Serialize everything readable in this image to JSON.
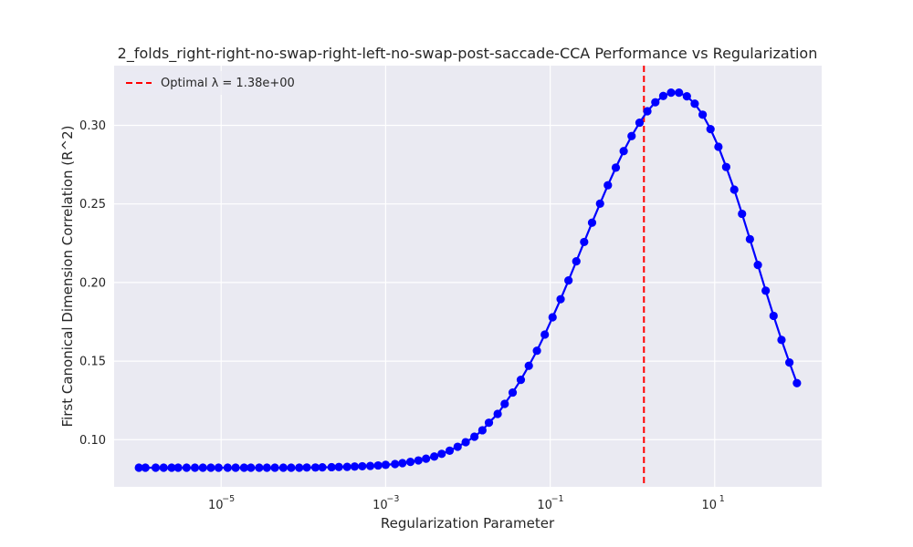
{
  "chart_data": {
    "type": "line",
    "title": "2_folds_right-right-no-swap-right-left-no-swap-post-saccade-CCA Performance vs Regularization",
    "xlabel": "Regularization Parameter",
    "ylabel": "First Canonical Dimension Correlation (R^2)",
    "x_scale": "log",
    "xlim": [
      5e-07,
      200
    ],
    "ylim": [
      0.07,
      0.338
    ],
    "x_ticks": [
      {
        "value": 1e-05,
        "base": "10",
        "exp": "−5"
      },
      {
        "value": 0.001,
        "base": "10",
        "exp": "−3"
      },
      {
        "value": 0.1,
        "base": "10",
        "exp": "−1"
      },
      {
        "value": 10,
        "base": "10",
        "exp": "1"
      }
    ],
    "y_ticks": [
      {
        "value": 0.1,
        "label": "0.10"
      },
      {
        "value": 0.15,
        "label": "0.15"
      },
      {
        "value": 0.2,
        "label": "0.20"
      },
      {
        "value": 0.25,
        "label": "0.25"
      },
      {
        "value": 0.3,
        "label": "0.30"
      }
    ],
    "grid": true,
    "legend_position": "top-left",
    "optimal_line": {
      "x": 1.38,
      "label": "Optimal λ = 1.38e+00",
      "color": "#ff0000"
    },
    "series": [
      {
        "color": "#0000ff",
        "x": [
          1e-06,
          1.2e-06,
          1.6e-06,
          2e-06,
          2.5e-06,
          3e-06,
          3.8e-06,
          4.8e-06,
          6e-06,
          7.5e-06,
          9.3e-06,
          1.2e-05,
          1.5e-05,
          1.9e-05,
          2.3e-05,
          2.9e-05,
          3.6e-05,
          4.5e-05,
          5.7e-05,
          7.1e-05,
          8.9e-05,
          0.00011,
          0.00014,
          0.00017,
          0.00022,
          0.00027,
          0.00034,
          0.00042,
          0.00052,
          0.00065,
          0.00081,
          0.001,
          0.0013,
          0.0016,
          0.002,
          0.0025,
          0.0031,
          0.0039,
          0.0048,
          0.006,
          0.0075,
          0.0094,
          0.012,
          0.015,
          0.018,
          0.023,
          0.028,
          0.035,
          0.044,
          0.055,
          0.069,
          0.086,
          0.107,
          0.134,
          0.167,
          0.208,
          0.259,
          0.323,
          0.404,
          0.503,
          0.628,
          0.783,
          0.977,
          1.22,
          1.52,
          1.9,
          2.37,
          2.95,
          3.68,
          4.59,
          5.72,
          7.14,
          8.9,
          11.1,
          13.8,
          17.3,
          21.5,
          26.8,
          33.5,
          41.7,
          52.0,
          64.9,
          81.0,
          100.0
        ],
        "y": [
          0.0822,
          0.0822,
          0.0822,
          0.0822,
          0.0822,
          0.0822,
          0.0822,
          0.0822,
          0.0822,
          0.0822,
          0.0822,
          0.0822,
          0.0822,
          0.0822,
          0.0822,
          0.0822,
          0.0822,
          0.0822,
          0.0822,
          0.0822,
          0.0822,
          0.0823,
          0.0823,
          0.0824,
          0.0825,
          0.0826,
          0.0827,
          0.0829,
          0.0831,
          0.0833,
          0.0836,
          0.084,
          0.0845,
          0.0851,
          0.0859,
          0.0868,
          0.0879,
          0.0893,
          0.091,
          0.093,
          0.0955,
          0.0984,
          0.1019,
          0.106,
          0.1108,
          0.1164,
          0.1228,
          0.13,
          0.1381,
          0.147,
          0.1566,
          0.1669,
          0.1779,
          0.1894,
          0.2013,
          0.2135,
          0.2258,
          0.2381,
          0.2502,
          0.2619,
          0.2731,
          0.2836,
          0.2932,
          0.3017,
          0.309,
          0.3147,
          0.3187,
          0.3208,
          0.3208,
          0.3185,
          0.3138,
          0.3068,
          0.2976,
          0.2864,
          0.2735,
          0.2591,
          0.2437,
          0.2276,
          0.2112,
          0.1948,
          0.1788,
          0.1635,
          0.1491,
          0.136
        ],
        "note_values_estimated": true
      }
    ]
  }
}
